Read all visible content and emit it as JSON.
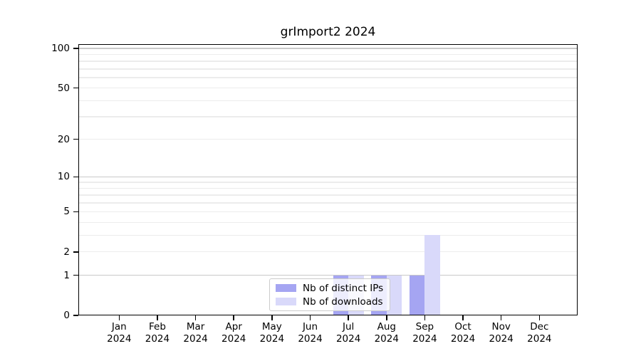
{
  "chart_data": {
    "type": "bar",
    "title": "grImport2 2024",
    "categories": [
      "Jan",
      "Feb",
      "Mar",
      "Apr",
      "May",
      "Jun",
      "Jul",
      "Aug",
      "Sep",
      "Oct",
      "Nov",
      "Dec"
    ],
    "x_year_label": "2024",
    "series": [
      {
        "name": "Nb of distinct IPs",
        "color": "#a5a5f2",
        "values": [
          0,
          0,
          0,
          0,
          0,
          0,
          1,
          1,
          1,
          0,
          0,
          0
        ]
      },
      {
        "name": "Nb of downloads",
        "color": "#d9d9fa",
        "values": [
          0,
          0,
          0,
          0,
          0,
          0,
          1,
          1,
          3,
          0,
          0,
          0
        ]
      }
    ],
    "y_scale": "log1p",
    "y_ticks": [
      0,
      1,
      2,
      5,
      10,
      20,
      50,
      100
    ],
    "ylim": [
      0,
      108
    ],
    "grid": true,
    "legend_position": "bottom-center",
    "colors": {
      "background": "#ffffff",
      "axis": "#000000",
      "grid_minor": "#ececec",
      "grid_major": "#c9c9c9",
      "legend_border": "#cccccc"
    }
  }
}
